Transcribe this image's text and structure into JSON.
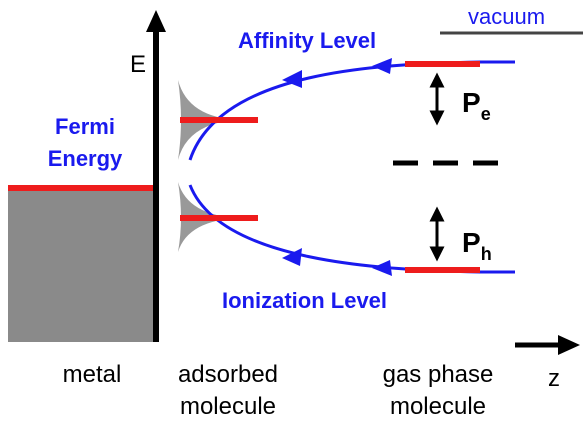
{
  "labels": {
    "vacuum": "vacuum",
    "energy_axis": "E",
    "affinity": "Affinity Level",
    "fermi": [
      "Fermi",
      "Energy"
    ],
    "pe": {
      "main": "P",
      "sub": "e"
    },
    "ph": {
      "main": "P",
      "sub": "h"
    },
    "ionization": "Ionization Level",
    "z_axis": "z",
    "regions": [
      [
        "metal"
      ],
      [
        "adsorbed",
        "molecule"
      ],
      [
        "gas phase",
        "molecule"
      ]
    ]
  }
}
